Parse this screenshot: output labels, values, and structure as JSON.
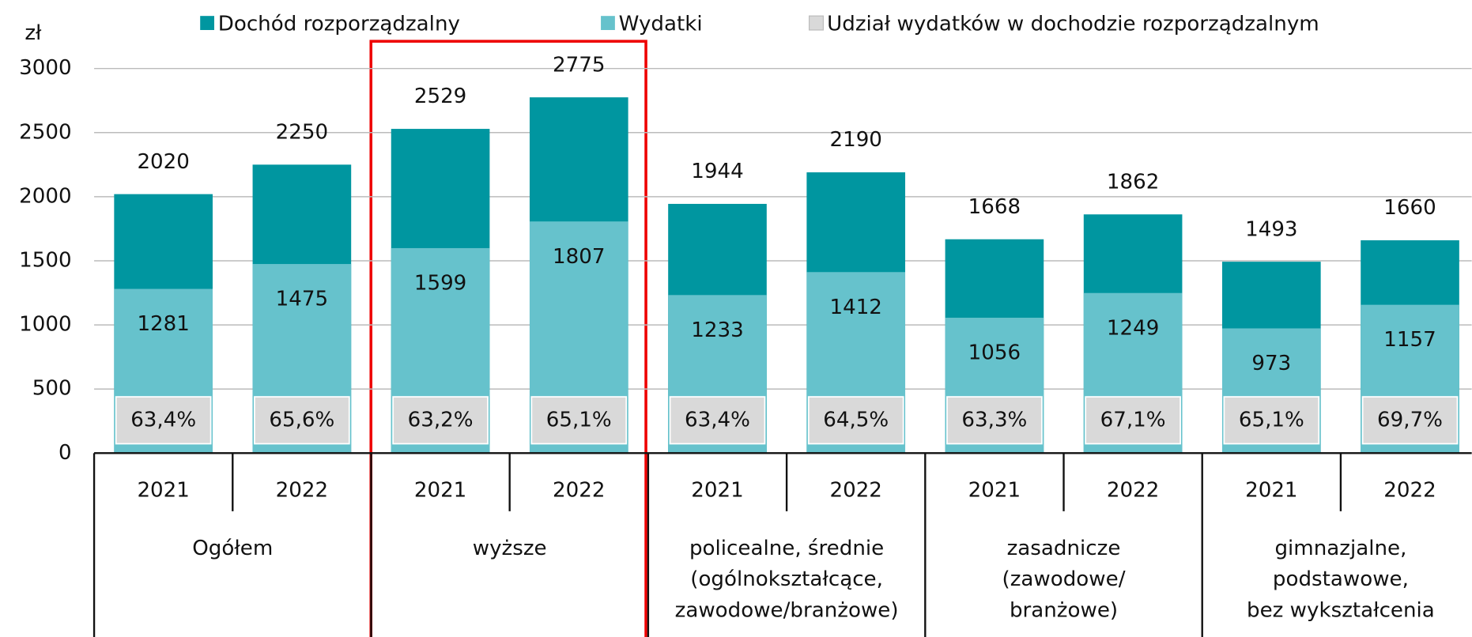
{
  "chart_data": {
    "type": "bar",
    "y_label": "zł",
    "categories": [
      "2021",
      "2022",
      "2021",
      "2022",
      "2021",
      "2022",
      "2021",
      "2022",
      "2021",
      "2022"
    ],
    "groups": [
      [
        "Ogółem"
      ],
      [
        "wyższe"
      ],
      [
        "policealne, średnie",
        "(ogólnokształcące,",
        "zawodowe/branżowe)"
      ],
      [
        "zasadnicze",
        "(zawodowe/",
        "branżowe)"
      ],
      [
        "gimnazjalne,",
        "podstawowe,",
        "bez wykształcenia"
      ]
    ],
    "series": [
      {
        "name": "Dochód rozporządzalny",
        "color": "#0096a0",
        "values": [
          2020,
          2250,
          2529,
          2775,
          1944,
          2190,
          1668,
          1862,
          1493,
          1660
        ]
      },
      {
        "name": "Wydatki",
        "color": "#66c2cc",
        "values": [
          1281,
          1475,
          1599,
          1807,
          1233,
          1412,
          1056,
          1249,
          973,
          1157
        ]
      },
      {
        "name": "Udział wydatków w dochodzie rozporządzalnym",
        "color": "#d9d9d9",
        "values": [
          63.4,
          65.6,
          63.2,
          65.1,
          63.4,
          64.5,
          63.3,
          67.1,
          65.1,
          69.7
        ],
        "value_labels": [
          "63,4%",
          "65,6%",
          "63,2%",
          "65,1%",
          "63,4%",
          "64,5%",
          "63,3%",
          "67,1%",
          "65,1%",
          "69,7%"
        ]
      }
    ],
    "ylim": [
      0,
      3000
    ],
    "yticks": [
      0,
      500,
      1000,
      1500,
      2000,
      2500,
      3000
    ],
    "grid": true
  }
}
